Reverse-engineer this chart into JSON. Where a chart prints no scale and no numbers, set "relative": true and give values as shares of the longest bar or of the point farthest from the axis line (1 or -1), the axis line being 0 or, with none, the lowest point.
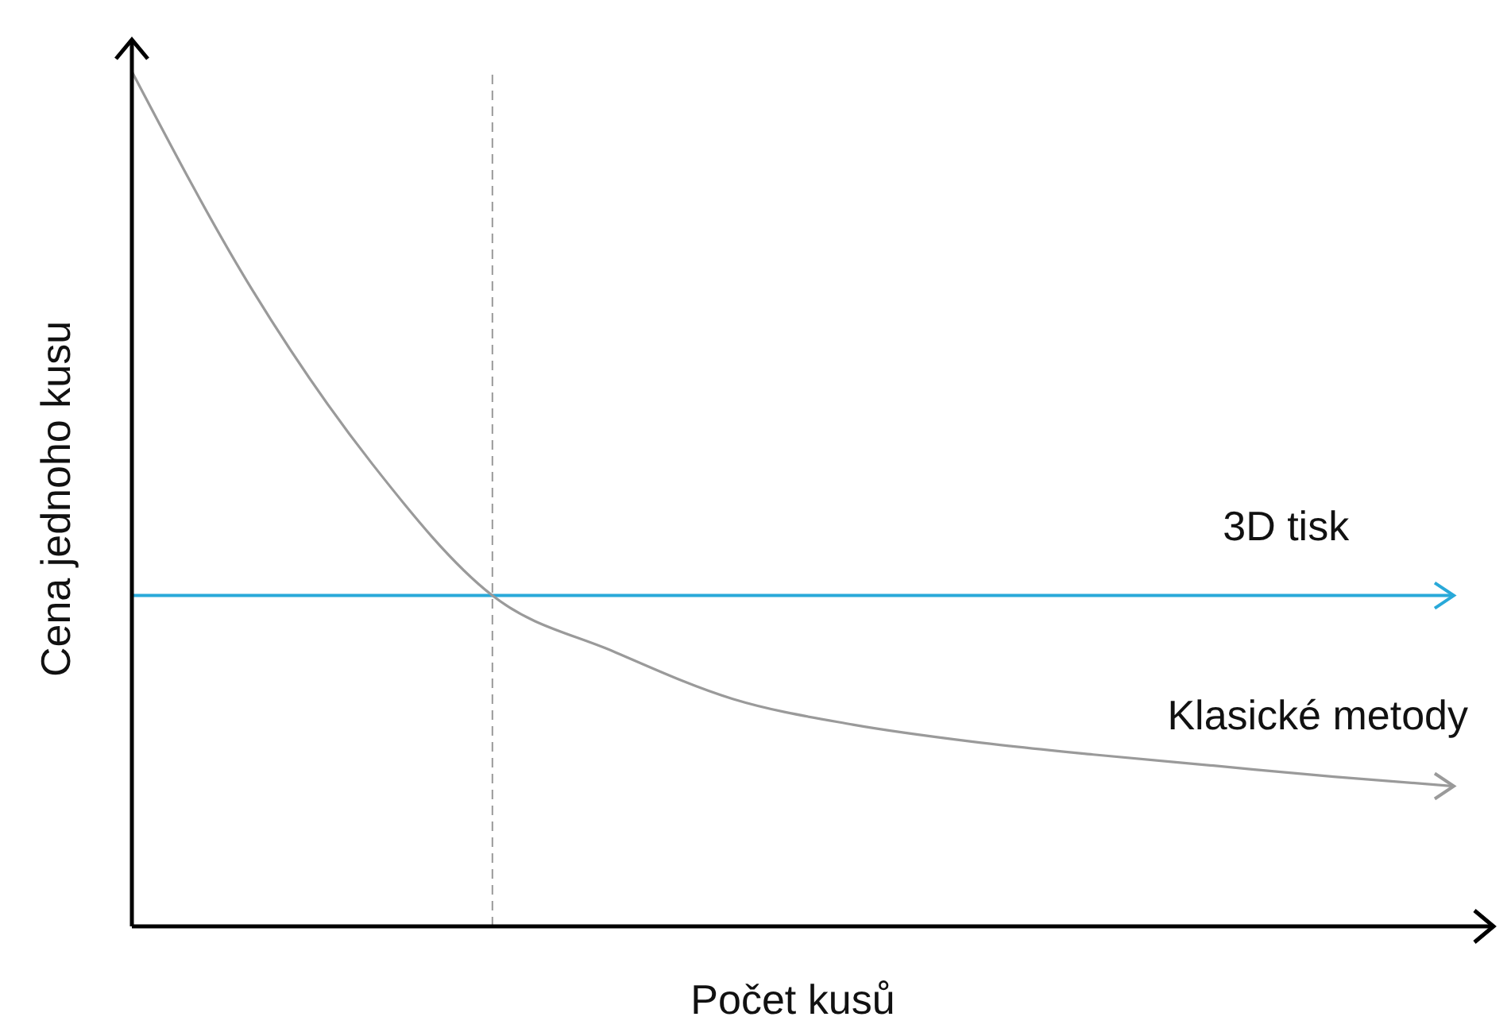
{
  "chart_data": {
    "type": "line",
    "relative": true,
    "xlabel": "Počet kusů",
    "ylabel": "Cena jednoho kusu",
    "categories": [
      null,
      null,
      null,
      null,
      null,
      null,
      null,
      null,
      null,
      null,
      null,
      null
    ],
    "series": [
      {
        "name": "3D tisk",
        "color": "#29a9d9",
        "values": [
          0.387,
          0.387,
          0.387,
          0.387,
          0.387,
          0.387,
          0.387,
          0.387,
          0.387,
          0.387,
          0.387,
          0.387
        ]
      },
      {
        "name": "Klasické metody",
        "color": "#9a9a9a",
        "values": [
          1.0,
          0.745,
          0.541,
          0.387,
          0.322,
          0.266,
          0.236,
          0.216,
          0.201,
          0.188,
          0.175,
          0.164
        ]
      }
    ],
    "marker": "none"
  }
}
